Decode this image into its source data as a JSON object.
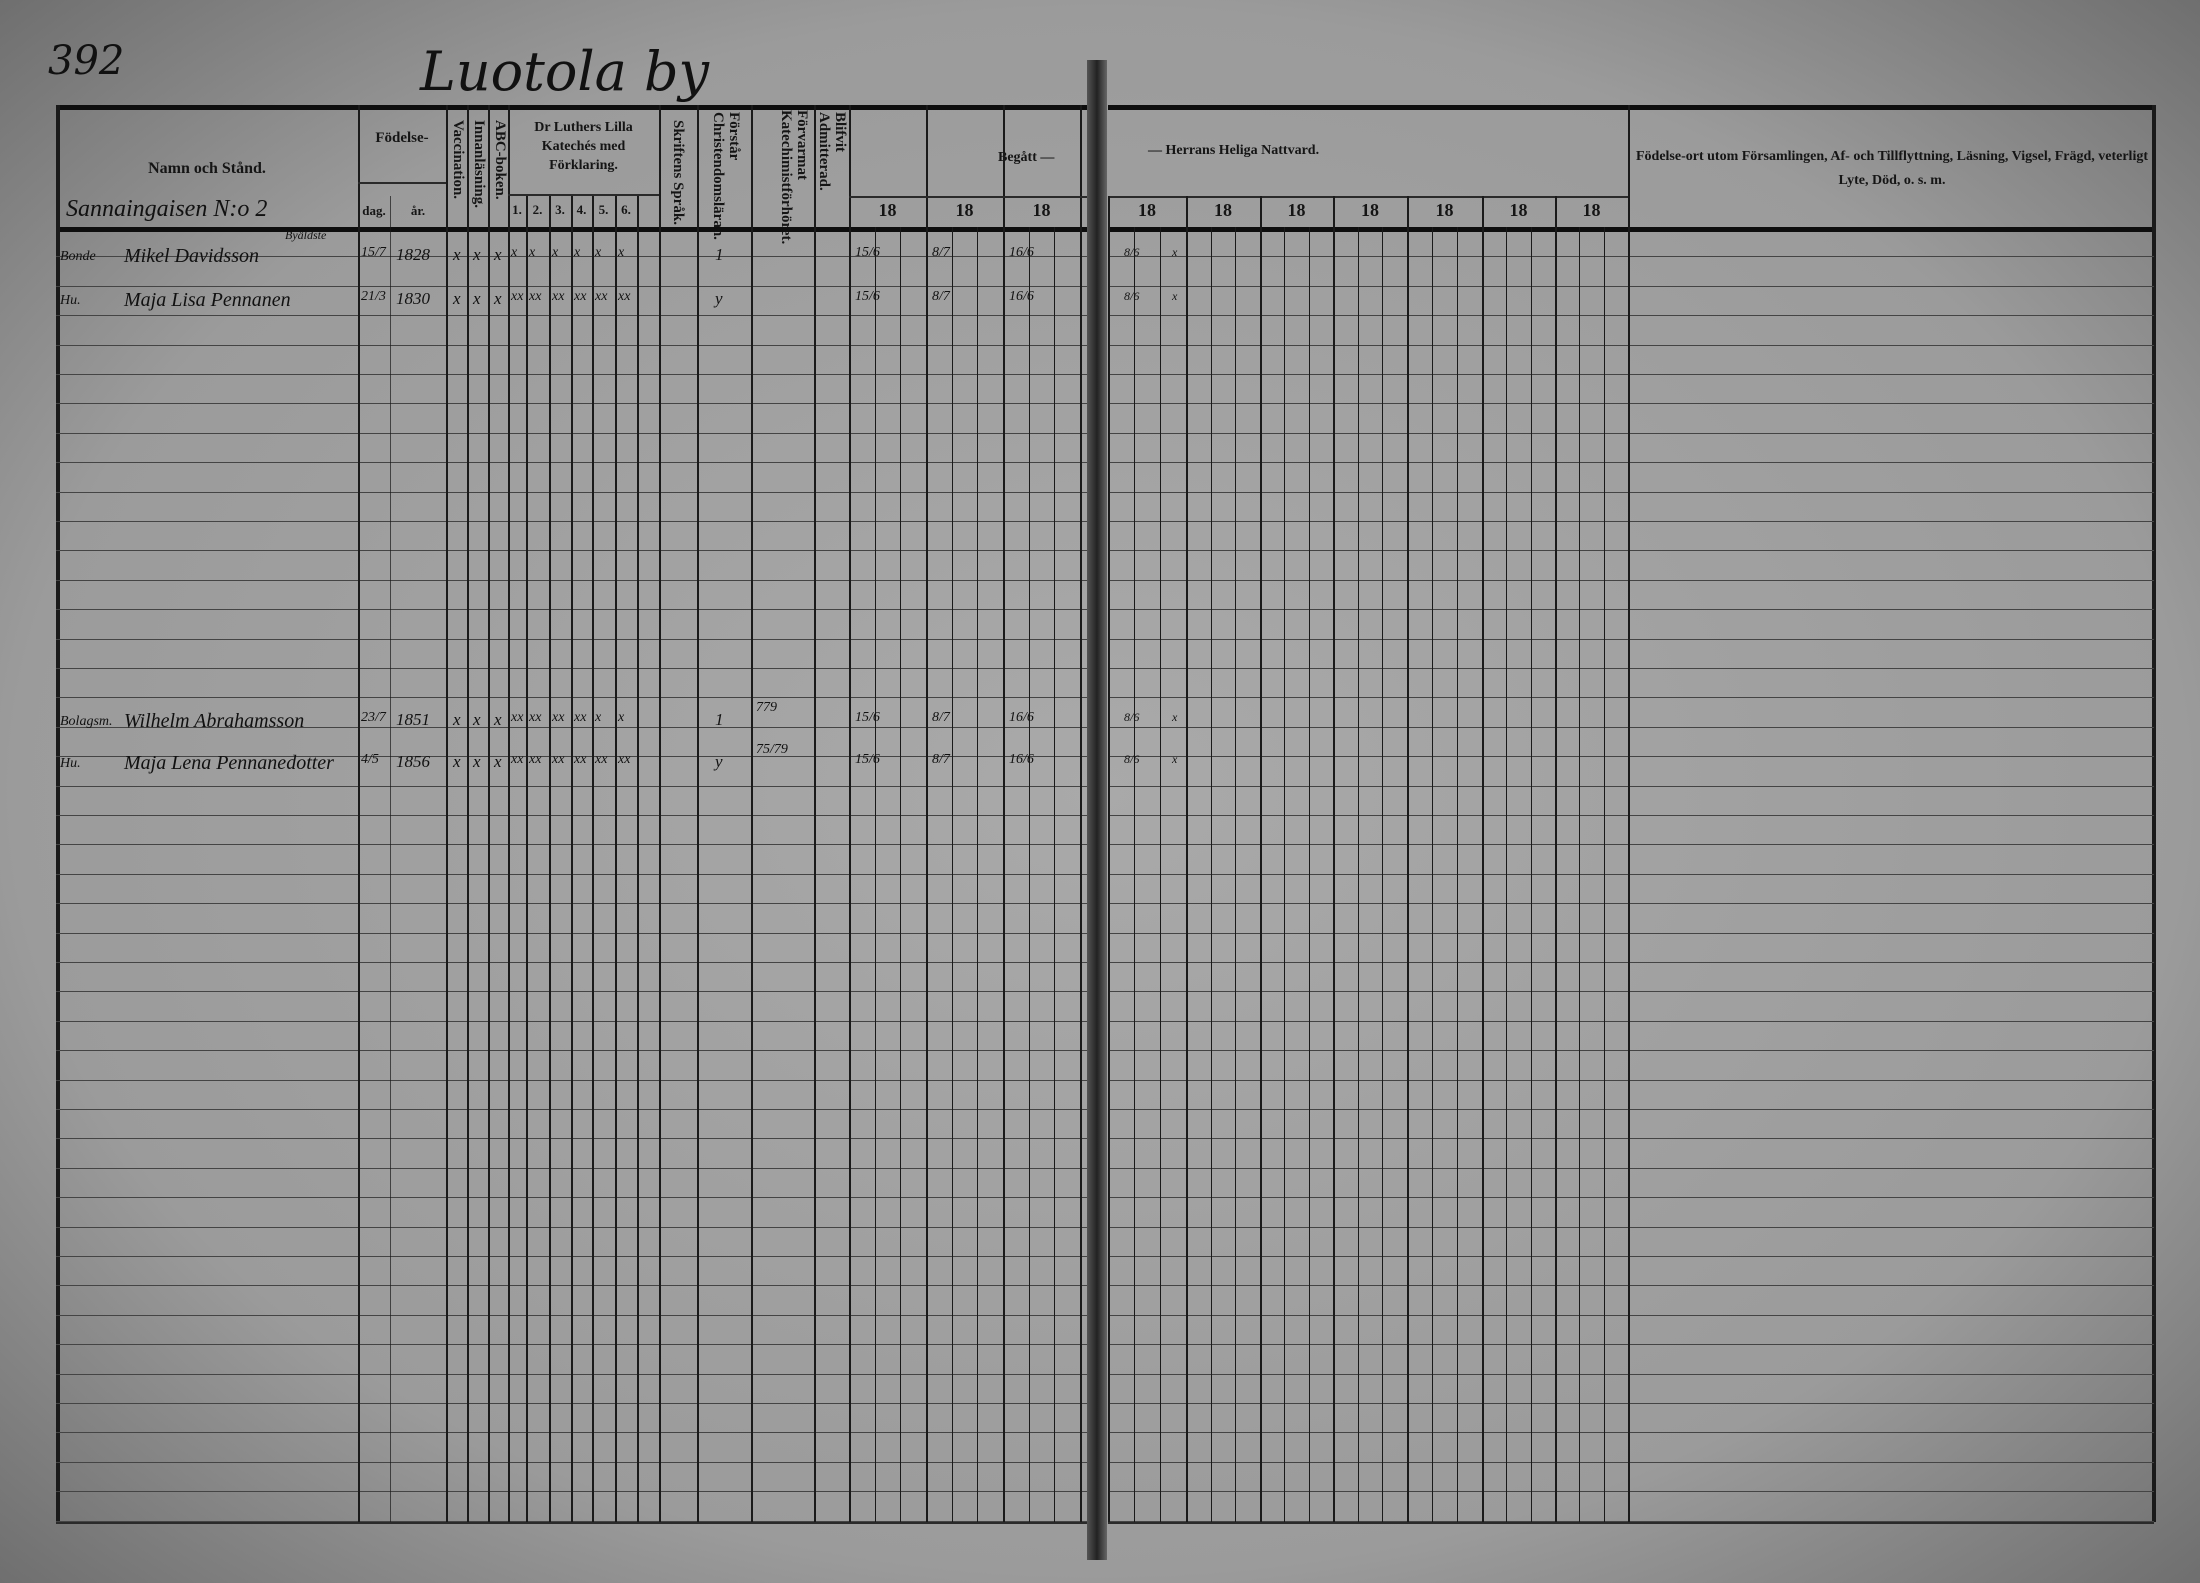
{
  "page_number": "392",
  "village_title": "Luotola by",
  "section_label": "Sannaingaisen N:o 2",
  "headers": {
    "name": "Namn och Stånd.",
    "birth": "Födelse-",
    "birth_day": "dag.",
    "birth_year": "år.",
    "vaccination": "Vaccination.",
    "reading": "Innanläsning.",
    "abc": "ABC-boken.",
    "luther": "Dr Luthers Lilla Katechés med Förklaring.",
    "luther_parts": [
      "1.",
      "2.",
      "3.",
      "4.",
      "5.",
      "6."
    ],
    "scripture": "Skriftens Språk.",
    "understands": "Förstår Christendomsläran.",
    "catechumen": "Förvarmat Katechimistförhöret.",
    "admitted": "Blifvit Admitterad.",
    "communion_left": "Begått —",
    "communion_right": "— Herrans Heliga Nattvard.",
    "year_prefix": "18",
    "remarks": "Födelse-ort utom Församlingen, Af- och Tillflyttning, Läsning, Vigsel, Frägd, veterligt Lyte, Död, o. s. m."
  },
  "entries": [
    {
      "title": "Bonde",
      "note": "Byäldste",
      "name": "Mikel Davidsson",
      "day": "15/7",
      "year": "1828",
      "vacc": "x",
      "reading": "x",
      "abc": "x",
      "luther": [
        "x",
        "x",
        "x",
        "x",
        "x",
        "x"
      ],
      "understands": "1",
      "catechumen": "",
      "communion": [
        "15/6",
        "8/7",
        "16/6"
      ],
      "communion_right": [
        "8/6",
        "x"
      ]
    },
    {
      "title": "Hu.",
      "note": "",
      "name": "Maja Lisa Pennanen",
      "day": "21/3",
      "year": "1830",
      "vacc": "x",
      "reading": "x",
      "abc": "x",
      "luther": [
        "xx",
        "xx",
        "xx",
        "xx",
        "xx",
        "xx"
      ],
      "understands": "y",
      "catechumen": "",
      "communion": [
        "15/6",
        "8/7",
        "16/6"
      ],
      "communion_right": [
        "8/6",
        "x"
      ]
    },
    {
      "title": "Bolagsm.",
      "note": "",
      "name": "Wilhelm Abrahamsson",
      "day": "23/7",
      "year": "1851",
      "vacc": "x",
      "reading": "x",
      "abc": "x",
      "luther": [
        "xx",
        "xx",
        "xx",
        "xx",
        "x",
        "x"
      ],
      "understands": "1",
      "catechumen": "779",
      "communion": [
        "15/6",
        "8/7",
        "16/6"
      ],
      "communion_right": [
        "8/6",
        "x"
      ]
    },
    {
      "title": "Hu.",
      "note": "",
      "name": "Maja Lena Pennanedotter",
      "day": "4/5",
      "year": "1856",
      "vacc": "x",
      "reading": "x",
      "abc": "x",
      "luther": [
        "xx",
        "xx",
        "xx",
        "xx",
        "xx",
        "xx"
      ],
      "understands": "y",
      "catechumen": "75/79",
      "communion": [
        "15/6",
        "8/7",
        "16/6"
      ],
      "communion_right": [
        "8/6",
        "x"
      ]
    }
  ]
}
